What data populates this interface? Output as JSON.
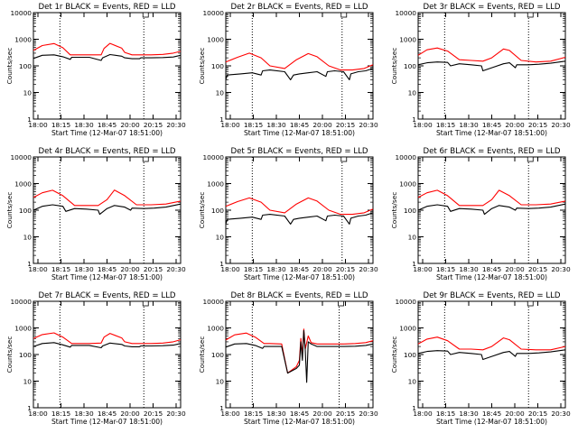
{
  "chart_data": [
    {
      "type": "line",
      "title": "Det 1r BLACK = Events, RED = LLD",
      "xlabel": "Start Time (12-Mar-07 18:51:00)",
      "ylabel": "Counts/sec",
      "x_ticks": [
        "18:00",
        "18:15",
        "18:30",
        "18:45",
        "20:00",
        "20:15",
        "20:30"
      ],
      "y_ticks": [
        "1",
        "10",
        "100",
        "1000",
        "10000"
      ],
      "y_scale": "log",
      "ylim": [
        1,
        10000
      ],
      "grid": false,
      "vlines_dotted_x": [
        0.18,
        0.75
      ],
      "corner_marker": "box",
      "series": [
        {
          "color": "#ff0000",
          "x": [
            0,
            0.06,
            0.14,
            0.2,
            0.25,
            0.3,
            0.38,
            0.46,
            0.48,
            0.52,
            0.6,
            0.62,
            0.67,
            0.72,
            0.74,
            0.8,
            0.88,
            0.95,
            1.0
          ],
          "y": [
            380,
            580,
            690,
            480,
            260,
            260,
            260,
            260,
            450,
            700,
            460,
            320,
            260,
            260,
            260,
            260,
            270,
            300,
            350
          ]
        },
        {
          "color": "#000000",
          "x": [
            0,
            0.06,
            0.14,
            0.2,
            0.25,
            0.26,
            0.3,
            0.38,
            0.46,
            0.47,
            0.52,
            0.6,
            0.62,
            0.67,
            0.72,
            0.73,
            0.8,
            0.88,
            0.95,
            1.0
          ],
          "y": [
            190,
            250,
            260,
            220,
            175,
            210,
            210,
            210,
            160,
            200,
            265,
            230,
            200,
            185,
            185,
            200,
            200,
            205,
            215,
            250
          ]
        }
      ]
    },
    {
      "type": "line",
      "title": "Det 2r BLACK = Events, RED = LLD",
      "xlabel": "Start Time (12-Mar-07 18:51:00)",
      "ylabel": "Counts/sec",
      "x_ticks": [
        "18:00",
        "18:15",
        "18:30",
        "18:45",
        "20:00",
        "20:15",
        "20:30"
      ],
      "y_ticks": [
        "1",
        "10",
        "100",
        "1000",
        "10000"
      ],
      "y_scale": "log",
      "ylim": [
        1,
        10000
      ],
      "grid": false,
      "vlines_dotted_x": [
        0.18,
        0.79
      ],
      "corner_marker": "box",
      "series": [
        {
          "color": "#ff0000",
          "x": [
            0,
            0.08,
            0.16,
            0.24,
            0.3,
            0.4,
            0.48,
            0.56,
            0.62,
            0.7,
            0.78,
            0.86,
            0.94,
            1.0
          ],
          "y": [
            140,
            210,
            300,
            200,
            100,
            80,
            170,
            290,
            220,
            100,
            70,
            70,
            80,
            110
          ]
        },
        {
          "color": "#000000",
          "x": [
            0,
            0.01,
            0.1,
            0.18,
            0.24,
            0.25,
            0.3,
            0.4,
            0.44,
            0.46,
            0.5,
            0.56,
            0.62,
            0.68,
            0.69,
            0.74,
            0.8,
            0.84,
            0.85,
            0.9,
            0.95,
            1.0
          ],
          "y": [
            30,
            45,
            50,
            55,
            45,
            65,
            70,
            60,
            30,
            45,
            50,
            55,
            60,
            40,
            60,
            65,
            60,
            30,
            50,
            60,
            65,
            80
          ]
        }
      ]
    },
    {
      "type": "line",
      "title": "Det 3r BLACK = Events, RED = LLD",
      "xlabel": "Start Time (12-Mar-07 18:51:00)",
      "ylabel": "Counts/sec",
      "x_ticks": [
        "18:00",
        "18:15",
        "18:30",
        "18:45",
        "20:00",
        "20:15",
        "20:30"
      ],
      "y_ticks": [
        "1",
        "10",
        "100",
        "1000",
        "10000"
      ],
      "y_scale": "log",
      "ylim": [
        1,
        10000
      ],
      "grid": false,
      "vlines_dotted_x": [
        0.18,
        0.75
      ],
      "corner_marker": "box",
      "series": [
        {
          "color": "#ff0000",
          "x": [
            0,
            0.06,
            0.13,
            0.2,
            0.28,
            0.36,
            0.44,
            0.5,
            0.58,
            0.62,
            0.7,
            0.8,
            0.9,
            1.0
          ],
          "y": [
            250,
            400,
            470,
            360,
            170,
            160,
            150,
            200,
            430,
            380,
            160,
            140,
            150,
            210
          ]
        },
        {
          "color": "#000000",
          "x": [
            0,
            0.06,
            0.13,
            0.2,
            0.22,
            0.28,
            0.36,
            0.43,
            0.44,
            0.5,
            0.58,
            0.62,
            0.66,
            0.67,
            0.75,
            0.82,
            0.9,
            1.0
          ],
          "y": [
            110,
            130,
            140,
            135,
            100,
            120,
            110,
            100,
            65,
            85,
            120,
            130,
            85,
            110,
            110,
            115,
            125,
            150
          ]
        }
      ]
    },
    {
      "type": "line",
      "title": "Det 4r BLACK = Events, RED = LLD",
      "xlabel": "Start Time (12-Mar-07 18:51:00)",
      "ylabel": "Counts/sec",
      "x_ticks": [
        "18:00",
        "18:15",
        "18:30",
        "18:45",
        "20:00",
        "20:15",
        "20:30"
      ],
      "y_ticks": [
        "1",
        "10",
        "100",
        "1000",
        "10000"
      ],
      "y_scale": "log",
      "ylim": [
        1,
        10000
      ],
      "grid": false,
      "vlines_dotted_x": [
        0.18,
        0.75
      ],
      "corner_marker": "box",
      "series": [
        {
          "color": "#ff0000",
          "x": [
            0,
            0.06,
            0.13,
            0.2,
            0.28,
            0.36,
            0.44,
            0.5,
            0.55,
            0.62,
            0.7,
            0.8,
            0.9,
            1.0
          ],
          "y": [
            300,
            450,
            560,
            350,
            150,
            150,
            150,
            250,
            570,
            350,
            160,
            160,
            170,
            220
          ]
        },
        {
          "color": "#000000",
          "x": [
            0,
            0.06,
            0.13,
            0.2,
            0.22,
            0.28,
            0.36,
            0.44,
            0.45,
            0.5,
            0.55,
            0.62,
            0.66,
            0.67,
            0.75,
            0.82,
            0.9,
            1.0
          ],
          "y": [
            100,
            140,
            160,
            140,
            90,
            115,
            110,
            100,
            70,
            115,
            150,
            130,
            100,
            120,
            115,
            120,
            130,
            170
          ]
        }
      ]
    },
    {
      "type": "line",
      "title": "Det 5r BLACK = Events, RED = LLD",
      "xlabel": "Start Time (12-Mar-07 18:51:00)",
      "ylabel": "Counts/sec",
      "x_ticks": [
        "18:00",
        "18:15",
        "18:30",
        "18:45",
        "20:00",
        "20:15",
        "20:30"
      ],
      "y_ticks": [
        "1",
        "10",
        "100",
        "1000",
        "10000"
      ],
      "y_scale": "log",
      "ylim": [
        1,
        10000
      ],
      "grid": false,
      "vlines_dotted_x": [
        0.18,
        0.79
      ],
      "corner_marker": "box",
      "series": [
        {
          "color": "#ff0000",
          "x": [
            0,
            0.08,
            0.16,
            0.24,
            0.3,
            0.4,
            0.48,
            0.56,
            0.62,
            0.7,
            0.78,
            0.86,
            0.94,
            1.0
          ],
          "y": [
            140,
            210,
            290,
            200,
            100,
            80,
            170,
            290,
            220,
            100,
            70,
            70,
            80,
            110
          ]
        },
        {
          "color": "#000000",
          "x": [
            0,
            0.01,
            0.1,
            0.18,
            0.24,
            0.25,
            0.3,
            0.4,
            0.44,
            0.46,
            0.5,
            0.56,
            0.62,
            0.68,
            0.69,
            0.74,
            0.8,
            0.84,
            0.85,
            0.9,
            0.95,
            1.0
          ],
          "y": [
            30,
            45,
            50,
            55,
            45,
            65,
            70,
            60,
            30,
            45,
            50,
            55,
            60,
            40,
            60,
            65,
            60,
            30,
            50,
            60,
            65,
            80
          ]
        }
      ]
    },
    {
      "type": "line",
      "title": "Det 6r BLACK = Events, RED = LLD",
      "xlabel": "Start Time (12-Mar-07 18:51:00)",
      "ylabel": "Counts/sec",
      "x_ticks": [
        "18:00",
        "18:15",
        "18:30",
        "18:45",
        "20:00",
        "20:15",
        "20:30"
      ],
      "y_ticks": [
        "1",
        "10",
        "100",
        "1000",
        "10000"
      ],
      "y_scale": "log",
      "ylim": [
        1,
        10000
      ],
      "grid": false,
      "vlines_dotted_x": [
        0.18,
        0.75
      ],
      "corner_marker": "box",
      "series": [
        {
          "color": "#ff0000",
          "x": [
            0,
            0.06,
            0.13,
            0.2,
            0.28,
            0.36,
            0.44,
            0.5,
            0.55,
            0.62,
            0.7,
            0.8,
            0.9,
            1.0
          ],
          "y": [
            300,
            450,
            560,
            350,
            150,
            150,
            150,
            250,
            560,
            350,
            160,
            160,
            170,
            220
          ]
        },
        {
          "color": "#000000",
          "x": [
            0,
            0.06,
            0.13,
            0.2,
            0.22,
            0.28,
            0.36,
            0.44,
            0.45,
            0.5,
            0.55,
            0.62,
            0.66,
            0.67,
            0.75,
            0.82,
            0.9,
            1.0
          ],
          "y": [
            100,
            140,
            160,
            140,
            90,
            115,
            110,
            100,
            70,
            115,
            150,
            130,
            100,
            120,
            115,
            120,
            130,
            170
          ]
        }
      ]
    },
    {
      "type": "line",
      "title": "Det 7r BLACK = Events, RED = LLD",
      "xlabel": "Start Time (12-Mar-07 18:51:00)",
      "ylabel": "Counts/sec",
      "x_ticks": [
        "18:00",
        "18:15",
        "18:30",
        "18:45",
        "20:00",
        "20:15",
        "20:30"
      ],
      "y_ticks": [
        "1",
        "10",
        "100",
        "1000",
        "10000"
      ],
      "y_scale": "log",
      "ylim": [
        1,
        10000
      ],
      "grid": false,
      "vlines_dotted_x": [
        0.18,
        0.75
      ],
      "corner_marker": "box",
      "series": [
        {
          "color": "#ff0000",
          "x": [
            0,
            0.06,
            0.14,
            0.2,
            0.26,
            0.3,
            0.38,
            0.46,
            0.48,
            0.52,
            0.6,
            0.62,
            0.67,
            0.72,
            0.74,
            0.8,
            0.88,
            0.95,
            1.0
          ],
          "y": [
            400,
            560,
            650,
            450,
            260,
            260,
            260,
            270,
            450,
            620,
            420,
            300,
            260,
            260,
            260,
            260,
            270,
            300,
            360
          ]
        },
        {
          "color": "#000000",
          "x": [
            0,
            0.06,
            0.14,
            0.2,
            0.25,
            0.26,
            0.3,
            0.38,
            0.46,
            0.47,
            0.52,
            0.6,
            0.62,
            0.67,
            0.72,
            0.73,
            0.8,
            0.88,
            0.95,
            1.0
          ],
          "y": [
            200,
            260,
            280,
            230,
            190,
            220,
            220,
            220,
            180,
            210,
            270,
            240,
            210,
            195,
            195,
            210,
            210,
            215,
            225,
            260
          ]
        }
      ]
    },
    {
      "type": "line",
      "title": "Det 8r BLACK = Events, RED = LLD",
      "xlabel": "Start Time (12-Mar-07 18:51:00)",
      "ylabel": "Counts/sec",
      "x_ticks": [
        "18:00",
        "18:15",
        "18:30",
        "18:45",
        "20:00",
        "20:15",
        "20:30"
      ],
      "y_ticks": [
        "1",
        "10",
        "100",
        "1000",
        "10000"
      ],
      "y_scale": "log",
      "ylim": [
        1,
        10000
      ],
      "grid": false,
      "vlines_dotted_x": [
        0.18,
        0.77
      ],
      "corner_marker": "box",
      "series": [
        {
          "color": "#ff0000",
          "x": [
            0,
            0.06,
            0.14,
            0.2,
            0.26,
            0.3,
            0.38,
            0.42,
            0.48,
            0.5,
            0.51,
            0.52,
            0.53,
            0.54,
            0.56,
            0.58,
            0.62,
            0.7,
            0.8,
            0.88,
            0.95,
            1.0
          ],
          "y": [
            350,
            550,
            640,
            450,
            260,
            260,
            250,
            20,
            35,
            60,
            400,
            90,
            900,
            160,
            500,
            280,
            250,
            250,
            250,
            260,
            280,
            330
          ]
        },
        {
          "color": "#000000",
          "x": [
            0,
            0.06,
            0.14,
            0.2,
            0.25,
            0.26,
            0.3,
            0.38,
            0.42,
            0.48,
            0.5,
            0.51,
            0.52,
            0.53,
            0.54,
            0.55,
            0.56,
            0.58,
            0.62,
            0.7,
            0.8,
            0.88,
            0.95,
            1.0
          ],
          "y": [
            190,
            250,
            260,
            220,
            170,
            200,
            200,
            200,
            20,
            30,
            40,
            300,
            60,
            800,
            150,
            9,
            300,
            250,
            200,
            200,
            200,
            205,
            220,
            250
          ]
        }
      ]
    },
    {
      "type": "line",
      "title": "Det 9r BLACK = Events, RED = LLD",
      "xlabel": "Start Time (12-Mar-07 18:51:00)",
      "ylabel": "Counts/sec",
      "x_ticks": [
        "18:00",
        "18:15",
        "18:30",
        "18:45",
        "20:00",
        "20:15",
        "20:30"
      ],
      "y_ticks": [
        "1",
        "10",
        "100",
        "1000",
        "10000"
      ],
      "y_scale": "log",
      "ylim": [
        1,
        10000
      ],
      "grid": false,
      "vlines_dotted_x": [
        0.18,
        0.75
      ],
      "corner_marker": "box",
      "series": [
        {
          "color": "#ff0000",
          "x": [
            0,
            0.06,
            0.13,
            0.2,
            0.28,
            0.36,
            0.44,
            0.5,
            0.58,
            0.62,
            0.7,
            0.8,
            0.9,
            1.0
          ],
          "y": [
            250,
            380,
            450,
            330,
            160,
            160,
            150,
            200,
            420,
            360,
            160,
            150,
            150,
            200
          ]
        },
        {
          "color": "#000000",
          "x": [
            0,
            0.06,
            0.13,
            0.2,
            0.22,
            0.28,
            0.36,
            0.43,
            0.44,
            0.5,
            0.58,
            0.62,
            0.66,
            0.67,
            0.75,
            0.82,
            0.9,
            1.0
          ],
          "y": [
            110,
            130,
            140,
            135,
            100,
            120,
            110,
            100,
            65,
            85,
            120,
            130,
            85,
            110,
            110,
            115,
            125,
            150
          ]
        }
      ]
    }
  ]
}
